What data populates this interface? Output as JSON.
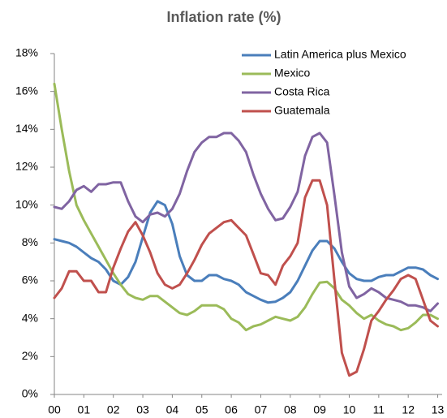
{
  "chart_data": {
    "type": "line",
    "title": "Inflation rate (%)",
    "x": [
      0,
      0.25,
      0.5,
      0.75,
      1,
      1.25,
      1.5,
      1.75,
      2,
      2.25,
      2.5,
      2.75,
      3,
      3.25,
      3.5,
      3.75,
      4,
      4.25,
      4.5,
      4.75,
      5,
      5.25,
      5.5,
      5.75,
      6,
      6.25,
      6.5,
      6.75,
      7,
      7.25,
      7.5,
      7.75,
      8,
      8.25,
      8.5,
      8.75,
      9,
      9.25,
      9.5,
      9.75,
      10,
      10.25,
      10.5,
      10.75,
      11,
      11.25,
      11.5,
      11.75,
      12,
      12.25,
      12.5,
      12.75,
      13
    ],
    "xlim": [
      0,
      13.15
    ],
    "xticks": [
      {
        "value": 0,
        "label": "00"
      },
      {
        "value": 1,
        "label": "01"
      },
      {
        "value": 2,
        "label": "02"
      },
      {
        "value": 3,
        "label": "03"
      },
      {
        "value": 4,
        "label": "04"
      },
      {
        "value": 5,
        "label": "05"
      },
      {
        "value": 6,
        "label": "06"
      },
      {
        "value": 7,
        "label": "07"
      },
      {
        "value": 8,
        "label": "08"
      },
      {
        "value": 9,
        "label": "09"
      },
      {
        "value": 10,
        "label": "10"
      },
      {
        "value": 11,
        "label": "11"
      },
      {
        "value": 12,
        "label": "12"
      },
      {
        "value": 13,
        "label": "13"
      }
    ],
    "ylim": [
      0,
      18
    ],
    "yticks": [
      {
        "value": 0,
        "label": "0%"
      },
      {
        "value": 2,
        "label": "2%"
      },
      {
        "value": 4,
        "label": "4%"
      },
      {
        "value": 6,
        "label": "6%"
      },
      {
        "value": 8,
        "label": "8%"
      },
      {
        "value": 10,
        "label": "10%"
      },
      {
        "value": 12,
        "label": "12%"
      },
      {
        "value": 14,
        "label": "14%"
      },
      {
        "value": 16,
        "label": "16%"
      },
      {
        "value": 18,
        "label": "18%"
      }
    ],
    "grid": false,
    "legend": "top-right",
    "series": [
      {
        "name": "Latin America plus Mexico",
        "color": "#4a7ebb",
        "values": [
          8.2,
          8.1,
          8.0,
          7.8,
          7.5,
          7.2,
          7.0,
          6.6,
          6.0,
          5.8,
          6.2,
          7.0,
          8.3,
          9.6,
          10.2,
          10.0,
          9.0,
          7.3,
          6.3,
          6.0,
          6.0,
          6.3,
          6.3,
          6.1,
          6.0,
          5.8,
          5.4,
          5.2,
          5.0,
          4.85,
          4.9,
          5.1,
          5.4,
          6.0,
          6.8,
          7.6,
          8.1,
          8.1,
          7.7,
          7.0,
          6.4,
          6.1,
          6.0,
          6.0,
          6.2,
          6.3,
          6.3,
          6.5,
          6.7,
          6.7,
          6.6,
          6.3,
          6.1
        ]
      },
      {
        "name": "Mexico",
        "color": "#9bbb59",
        "values": [
          16.4,
          14.0,
          11.8,
          10.0,
          9.2,
          8.5,
          7.8,
          7.1,
          6.4,
          5.8,
          5.3,
          5.1,
          5.0,
          5.2,
          5.2,
          4.9,
          4.6,
          4.3,
          4.2,
          4.4,
          4.7,
          4.7,
          4.7,
          4.5,
          4.0,
          3.8,
          3.4,
          3.6,
          3.7,
          3.9,
          4.1,
          4.0,
          3.9,
          4.1,
          4.6,
          5.3,
          5.9,
          5.95,
          5.6,
          5.0,
          4.7,
          4.3,
          4.0,
          4.2,
          3.9,
          3.7,
          3.6,
          3.4,
          3.5,
          3.8,
          4.2,
          4.2,
          4.0
        ]
      },
      {
        "name": "Costa Rica",
        "color": "#8064a2",
        "values": [
          9.9,
          9.8,
          10.2,
          10.8,
          11.0,
          10.7,
          11.1,
          11.1,
          11.2,
          11.2,
          10.2,
          9.4,
          9.1,
          9.5,
          9.6,
          9.4,
          9.8,
          10.6,
          11.8,
          12.8,
          13.3,
          13.6,
          13.6,
          13.8,
          13.8,
          13.4,
          12.8,
          11.6,
          10.6,
          9.8,
          9.2,
          9.3,
          9.9,
          10.7,
          12.6,
          13.6,
          13.8,
          13.3,
          10.5,
          7.5,
          5.7,
          5.1,
          5.3,
          5.6,
          5.4,
          5.1,
          5.0,
          4.9,
          4.7,
          4.7,
          4.6,
          4.4,
          4.8
        ]
      },
      {
        "name": "Guatemala",
        "color": "#c0504d",
        "values": [
          5.1,
          5.6,
          6.5,
          6.5,
          6.0,
          6.0,
          5.4,
          5.4,
          6.7,
          7.7,
          8.6,
          9.1,
          8.4,
          7.5,
          6.4,
          5.8,
          5.6,
          5.8,
          6.4,
          7.1,
          7.9,
          8.5,
          8.8,
          9.1,
          9.2,
          8.8,
          8.4,
          7.4,
          6.4,
          6.3,
          5.8,
          6.8,
          7.3,
          8.0,
          10.4,
          11.3,
          11.3,
          10.0,
          6.0,
          2.2,
          1.0,
          1.2,
          2.4,
          3.9,
          4.4,
          5.0,
          5.5,
          6.1,
          6.3,
          6.1,
          5.0,
          3.9,
          3.6
        ]
      }
    ]
  }
}
